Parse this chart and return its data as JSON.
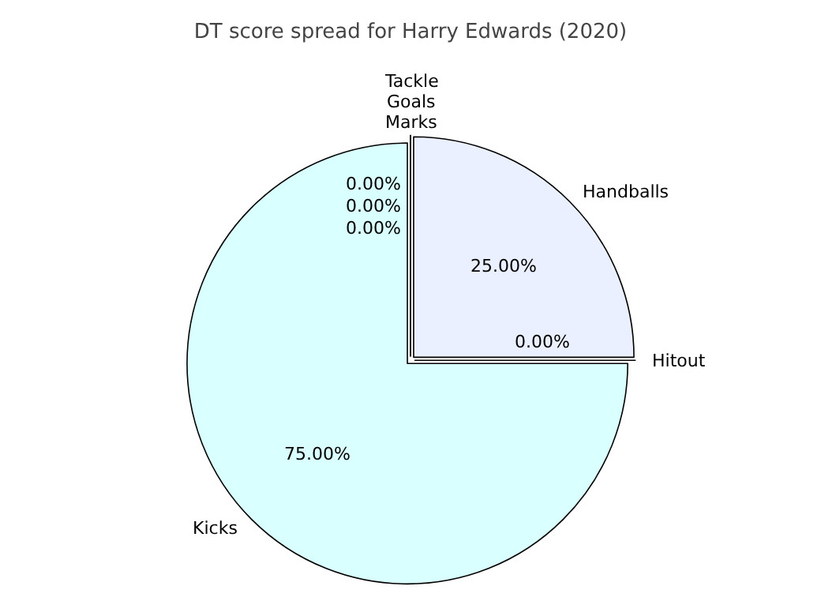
{
  "chart_data": {
    "type": "pie",
    "title": "DT score spread for Harry Edwards (2020)",
    "categories": [
      "Handballs",
      "Marks",
      "Goals",
      "Tackle",
      "Kicks",
      "Hitout"
    ],
    "values": [
      25,
      0,
      0,
      0,
      75,
      0
    ],
    "value_labels": [
      "25.00%",
      "0.00%",
      "0.00%",
      "0.00%",
      "75.00%",
      "0.00%"
    ],
    "colors": [
      "#eaf0ff",
      "#ffe8e8",
      "#e8ffe8",
      "#fff8e0",
      "#d9ffff",
      "#f0e8ff"
    ],
    "legend": false
  }
}
